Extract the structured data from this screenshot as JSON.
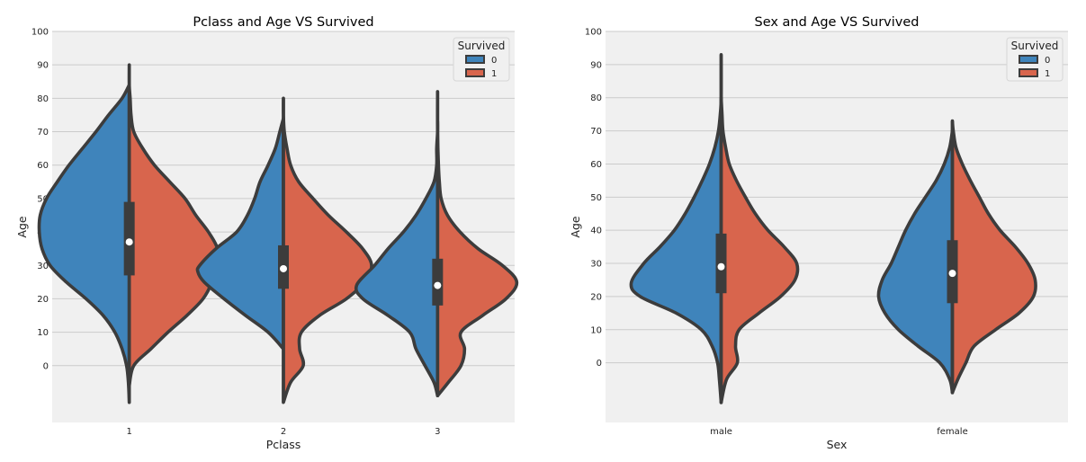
{
  "colors": {
    "dead": "#3f84bb",
    "survived": "#d8654d",
    "outline": "#3c3c3c",
    "panel": "#f0f0f0",
    "grid": "#cbcbcb"
  },
  "chart_data": [
    {
      "type": "violin",
      "split": true,
      "title": "Pclass and Age VS Survived",
      "xlabel": "Pclass",
      "ylabel": "Age",
      "categories": [
        "1",
        "2",
        "3"
      ],
      "yticks": [
        0,
        10,
        20,
        30,
        40,
        50,
        60,
        70,
        80,
        90,
        100
      ],
      "ylim": [
        -17,
        100
      ],
      "legend": {
        "title": "Survived",
        "entries": [
          "0",
          "1"
        ],
        "position": "top-right"
      },
      "violins": [
        {
          "category": "1",
          "survived_0": [
            [
              -11,
              0.0
            ],
            [
              -5,
              0.01
            ],
            [
              0,
              0.03
            ],
            [
              5,
              0.08
            ],
            [
              10,
              0.16
            ],
            [
              15,
              0.29
            ],
            [
              20,
              0.48
            ],
            [
              25,
              0.7
            ],
            [
              30,
              0.88
            ],
            [
              35,
              0.97
            ],
            [
              40,
              1.0
            ],
            [
              45,
              0.99
            ],
            [
              50,
              0.92
            ],
            [
              55,
              0.8
            ],
            [
              60,
              0.67
            ],
            [
              65,
              0.52
            ],
            [
              70,
              0.37
            ],
            [
              75,
              0.23
            ],
            [
              80,
              0.08
            ],
            [
              84,
              0.0
            ]
          ],
          "survived_1": [
            [
              -6,
              0.0
            ],
            [
              0,
              0.05
            ],
            [
              5,
              0.24
            ],
            [
              10,
              0.43
            ],
            [
              15,
              0.64
            ],
            [
              20,
              0.82
            ],
            [
              25,
              0.92
            ],
            [
              30,
              0.97
            ],
            [
              35,
              0.98
            ],
            [
              40,
              0.88
            ],
            [
              45,
              0.74
            ],
            [
              50,
              0.62
            ],
            [
              55,
              0.45
            ],
            [
              60,
              0.28
            ],
            [
              65,
              0.15
            ],
            [
              70,
              0.05
            ],
            [
              75,
              0.02
            ],
            [
              80,
              0.01
            ],
            [
              84,
              0.0
            ],
            [
              90,
              0.0
            ]
          ],
          "quartiles": [
            27,
            49
          ],
          "median": 37
        },
        {
          "category": "2",
          "survived_0": [
            [
              5,
              0.0
            ],
            [
              10,
              0.17
            ],
            [
              15,
              0.42
            ],
            [
              20,
              0.66
            ],
            [
              25,
              0.88
            ],
            [
              28,
              0.95
            ],
            [
              30,
              0.93
            ],
            [
              35,
              0.75
            ],
            [
              40,
              0.52
            ],
            [
              45,
              0.4
            ],
            [
              50,
              0.32
            ],
            [
              55,
              0.26
            ],
            [
              60,
              0.17
            ],
            [
              65,
              0.09
            ],
            [
              70,
              0.04
            ],
            [
              74,
              0.0
            ]
          ],
          "survived_1": [
            [
              -11,
              0.0
            ],
            [
              -5,
              0.08
            ],
            [
              0,
              0.22
            ],
            [
              5,
              0.18
            ],
            [
              10,
              0.2
            ],
            [
              15,
              0.4
            ],
            [
              20,
              0.7
            ],
            [
              25,
              0.9
            ],
            [
              30,
              0.98
            ],
            [
              35,
              0.88
            ],
            [
              40,
              0.7
            ],
            [
              45,
              0.5
            ],
            [
              50,
              0.33
            ],
            [
              55,
              0.17
            ],
            [
              60,
              0.08
            ],
            [
              65,
              0.04
            ],
            [
              70,
              0.01
            ],
            [
              75,
              0.0
            ],
            [
              80,
              0.0
            ]
          ],
          "quartiles": [
            23,
            36
          ],
          "median": 29
        },
        {
          "category": "3",
          "survived_0": [
            [
              -9,
              0.0
            ],
            [
              -5,
              0.04
            ],
            [
              0,
              0.14
            ],
            [
              5,
              0.24
            ],
            [
              10,
              0.31
            ],
            [
              15,
              0.55
            ],
            [
              20,
              0.83
            ],
            [
              24,
              0.9
            ],
            [
              30,
              0.7
            ],
            [
              35,
              0.55
            ],
            [
              40,
              0.38
            ],
            [
              45,
              0.24
            ],
            [
              50,
              0.13
            ],
            [
              55,
              0.04
            ],
            [
              60,
              0.01
            ],
            [
              65,
              0.01
            ],
            [
              70,
              0.0
            ],
            [
              73,
              0.0
            ]
          ],
          "survived_1": [
            [
              -9,
              0.0
            ],
            [
              -5,
              0.12
            ],
            [
              0,
              0.26
            ],
            [
              5,
              0.3
            ],
            [
              10,
              0.26
            ],
            [
              15,
              0.5
            ],
            [
              20,
              0.76
            ],
            [
              25,
              0.88
            ],
            [
              30,
              0.72
            ],
            [
              35,
              0.45
            ],
            [
              40,
              0.25
            ],
            [
              45,
              0.11
            ],
            [
              50,
              0.04
            ],
            [
              55,
              0.02
            ],
            [
              60,
              0.01
            ],
            [
              70,
              0.0
            ],
            [
              82,
              0.0
            ]
          ],
          "quartiles": [
            18,
            32
          ],
          "median": 24
        }
      ]
    },
    {
      "type": "violin",
      "split": true,
      "title": "Sex and Age VS Survived",
      "xlabel": "Sex",
      "ylabel": "Age",
      "categories": [
        "male",
        "female"
      ],
      "yticks": [
        0,
        10,
        20,
        30,
        40,
        50,
        60,
        70,
        80,
        90,
        100
      ],
      "ylim": [
        -18,
        100
      ],
      "legend": {
        "title": "Survived",
        "entries": [
          "0",
          "1"
        ],
        "position": "top-right"
      },
      "violins": [
        {
          "category": "male",
          "survived_0": [
            [
              -12,
              0.0
            ],
            [
              -5,
              0.02
            ],
            [
              0,
              0.04
            ],
            [
              5,
              0.1
            ],
            [
              10,
              0.22
            ],
            [
              15,
              0.5
            ],
            [
              20,
              0.9
            ],
            [
              24,
              1.0
            ],
            [
              30,
              0.86
            ],
            [
              35,
              0.68
            ],
            [
              40,
              0.52
            ],
            [
              45,
              0.4
            ],
            [
              50,
              0.3
            ],
            [
              55,
              0.21
            ],
            [
              60,
              0.13
            ],
            [
              65,
              0.07
            ],
            [
              70,
              0.03
            ],
            [
              75,
              0.01
            ],
            [
              80,
              0.0
            ],
            [
              93,
              0.0
            ]
          ],
          "survived_1": [
            [
              -12,
              0.0
            ],
            [
              -5,
              0.06
            ],
            [
              0,
              0.18
            ],
            [
              5,
              0.16
            ],
            [
              10,
              0.2
            ],
            [
              15,
              0.42
            ],
            [
              20,
              0.66
            ],
            [
              25,
              0.82
            ],
            [
              30,
              0.84
            ],
            [
              35,
              0.7
            ],
            [
              40,
              0.52
            ],
            [
              45,
              0.38
            ],
            [
              50,
              0.27
            ],
            [
              55,
              0.17
            ],
            [
              60,
              0.09
            ],
            [
              65,
              0.05
            ],
            [
              70,
              0.02
            ],
            [
              75,
              0.01
            ],
            [
              80,
              0.0
            ]
          ],
          "quartiles": [
            21,
            39
          ],
          "median": 29
        },
        {
          "category": "female",
          "survived_0": [
            [
              -9,
              0.0
            ],
            [
              -5,
              0.03
            ],
            [
              0,
              0.14
            ],
            [
              5,
              0.38
            ],
            [
              10,
              0.6
            ],
            [
              15,
              0.75
            ],
            [
              20,
              0.82
            ],
            [
              25,
              0.78
            ],
            [
              30,
              0.68
            ],
            [
              35,
              0.6
            ],
            [
              40,
              0.52
            ],
            [
              45,
              0.42
            ],
            [
              50,
              0.3
            ],
            [
              55,
              0.18
            ],
            [
              60,
              0.09
            ],
            [
              65,
              0.03
            ],
            [
              70,
              0.0
            ]
          ],
          "survived_1": [
            [
              -9,
              0.0
            ],
            [
              -5,
              0.06
            ],
            [
              0,
              0.15
            ],
            [
              5,
              0.24
            ],
            [
              10,
              0.48
            ],
            [
              15,
              0.74
            ],
            [
              20,
              0.9
            ],
            [
              25,
              0.92
            ],
            [
              30,
              0.84
            ],
            [
              35,
              0.7
            ],
            [
              40,
              0.53
            ],
            [
              45,
              0.4
            ],
            [
              50,
              0.3
            ],
            [
              55,
              0.2
            ],
            [
              60,
              0.11
            ],
            [
              65,
              0.04
            ],
            [
              70,
              0.01
            ],
            [
              73,
              0.0
            ]
          ],
          "quartiles": [
            18,
            37
          ],
          "median": 27
        }
      ]
    }
  ]
}
